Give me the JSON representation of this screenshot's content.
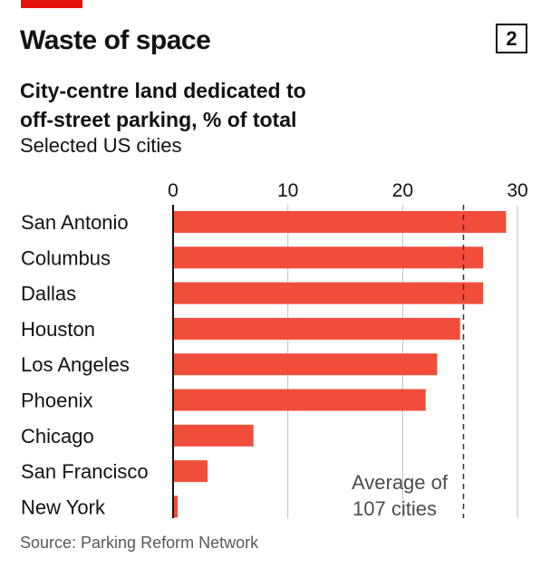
{
  "header": {
    "title": "Waste of space",
    "chart_number": "2",
    "subtitle_line1": "City-centre land dedicated to",
    "subtitle_line2": "off-street parking, % of total",
    "caption": "Selected US cities"
  },
  "source": "Source: Parking Reform Network",
  "colors": {
    "accent": "#e3120b",
    "bar": "#f04e3a",
    "grid": "#bfbfbf",
    "text": "#121212"
  },
  "chart_data": {
    "type": "bar",
    "orientation": "horizontal",
    "title": "City-centre land dedicated to off-street parking, % of total",
    "subtitle": "Selected US cities",
    "categories": [
      "San Antonio",
      "Columbus",
      "Dallas",
      "Houston",
      "Los Angeles",
      "Phoenix",
      "Chicago",
      "San Francisco",
      "New York"
    ],
    "values": [
      29,
      27,
      27,
      25,
      23,
      22,
      7,
      3,
      0.4
    ],
    "xlim": [
      0,
      30
    ],
    "xticks": [
      0,
      10,
      20,
      30
    ],
    "grid": true,
    "reference_line": {
      "value": 25.3,
      "style": "dashed",
      "label_line1": "Average of",
      "label_line2": "107 cities"
    }
  }
}
